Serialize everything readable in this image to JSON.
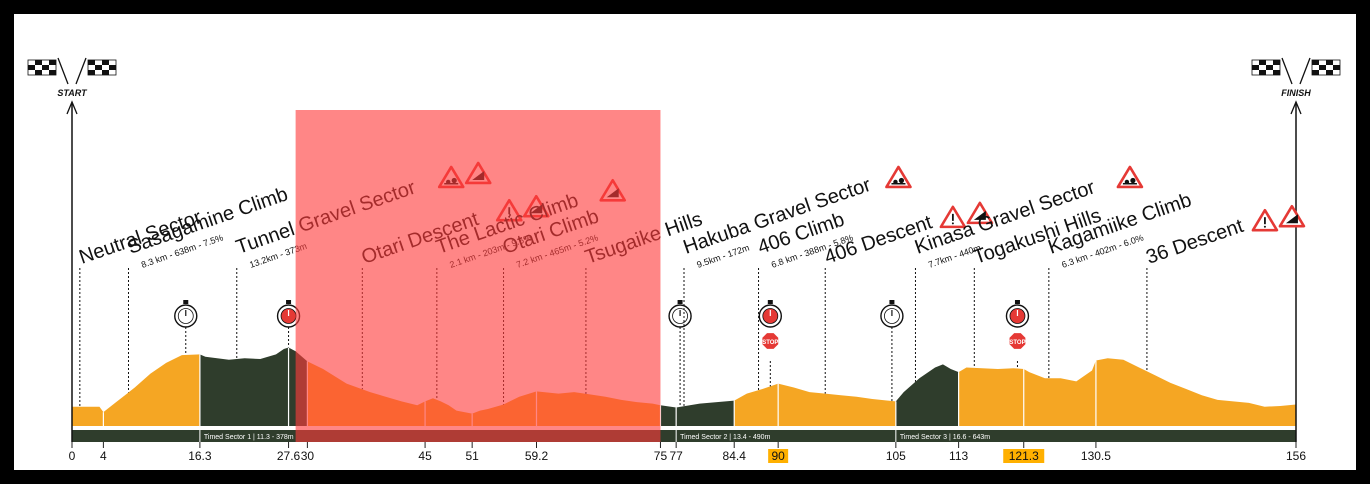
{
  "chart_data": {
    "type": "area",
    "title": "",
    "xlabel": "",
    "ylabel": "",
    "x_unit": "km",
    "xlim": [
      0,
      156
    ],
    "x_ticks": [
      {
        "v": 0,
        "label": "0"
      },
      {
        "v": 4,
        "label": "4"
      },
      {
        "v": 16.3,
        "label": "16.3"
      },
      {
        "v": 27.6,
        "label": "27.6"
      },
      {
        "v": 30,
        "label": "30"
      },
      {
        "v": 45,
        "label": "45"
      },
      {
        "v": 51,
        "label": "51"
      },
      {
        "v": 59.2,
        "label": "59.2"
      },
      {
        "v": 75,
        "label": "75"
      },
      {
        "v": 77,
        "label": "77"
      },
      {
        "v": 84.4,
        "label": "84.4"
      },
      {
        "v": 90,
        "label": "90",
        "highlight": true
      },
      {
        "v": 105,
        "label": "105"
      },
      {
        "v": 113,
        "label": "113"
      },
      {
        "v": 121.3,
        "label": "121.3",
        "highlight": true
      },
      {
        "v": 130.5,
        "label": "130.5"
      },
      {
        "v": 156,
        "label": "156"
      }
    ],
    "profile": {
      "x": [
        0,
        3.5,
        4,
        5.5,
        8,
        10,
        12,
        14,
        16.3,
        17,
        20,
        22,
        24,
        26,
        27,
        27.6,
        28.5,
        30,
        32,
        35,
        38,
        42,
        44,
        45,
        46,
        47,
        48,
        49,
        50,
        51,
        52,
        53,
        55,
        57,
        59.2,
        62,
        64,
        66,
        68,
        70,
        72,
        74,
        75,
        77,
        80,
        84.4,
        86,
        88,
        90,
        92,
        94,
        96,
        98,
        100,
        102,
        104,
        105,
        106,
        108,
        110,
        111,
        112,
        113,
        114,
        116,
        118,
        120,
        121.3,
        122,
        124,
        126,
        128,
        130,
        130.5,
        132,
        134,
        136,
        138,
        140,
        142,
        144,
        146,
        148,
        150,
        152,
        154,
        156
      ],
      "y": [
        0.25,
        0.25,
        0.18,
        0.3,
        0.5,
        0.68,
        0.82,
        0.92,
        0.93,
        0.9,
        0.86,
        0.88,
        0.87,
        0.93,
        1.0,
        1.02,
        0.97,
        0.84,
        0.74,
        0.55,
        0.44,
        0.32,
        0.27,
        0.32,
        0.36,
        0.32,
        0.27,
        0.2,
        0.18,
        0.16,
        0.2,
        0.22,
        0.28,
        0.38,
        0.45,
        0.42,
        0.44,
        0.41,
        0.38,
        0.34,
        0.31,
        0.29,
        0.27,
        0.24,
        0.29,
        0.33,
        0.42,
        0.48,
        0.55,
        0.5,
        0.44,
        0.42,
        0.4,
        0.38,
        0.35,
        0.33,
        0.32,
        0.44,
        0.62,
        0.76,
        0.8,
        0.74,
        0.7,
        0.76,
        0.75,
        0.74,
        0.75,
        0.74,
        0.7,
        0.62,
        0.62,
        0.58,
        0.72,
        0.85,
        0.88,
        0.86,
        0.76,
        0.66,
        0.56,
        0.48,
        0.4,
        0.34,
        0.32,
        0.3,
        0.25,
        0.26,
        0.28
      ]
    },
    "segments": [
      {
        "from": 0,
        "to": 16.3,
        "color": "#f5a623"
      },
      {
        "from": 16.3,
        "to": 27.6,
        "color": "#2f3d2c"
      },
      {
        "from": 27.6,
        "to": 30,
        "color": "#2f3d2c"
      },
      {
        "from": 30,
        "to": 75,
        "color": "#f5a623"
      },
      {
        "from": 75,
        "to": 84.4,
        "color": "#2f3d2c"
      },
      {
        "from": 84.4,
        "to": 105,
        "color": "#f5a623"
      },
      {
        "from": 105,
        "to": 113,
        "color": "#2f3d2c"
      },
      {
        "from": 113,
        "to": 156,
        "color": "#f5a623"
      }
    ],
    "timed_sectors": [
      {
        "from": 16.3,
        "to": 30,
        "label": "Timed Sector 1 | 11.3 - 378m"
      },
      {
        "from": 77,
        "to": 105,
        "label": "Timed Sector 2 | 13.4 - 490m"
      },
      {
        "from": 105,
        "to": 140,
        "label": "Timed Sector 3 | 16.6 - 643m"
      }
    ],
    "highlight_region": {
      "from": 28.5,
      "to": 75,
      "color": "rgba(255,60,60,0.62)"
    },
    "start_label": "START",
    "finish_label": "FINISH",
    "annotations": [
      {
        "km": 1,
        "name": "Neutral Sector",
        "sub": "",
        "dy": 0,
        "icons": []
      },
      {
        "km": 7.2,
        "name": "Sasagamine Climb",
        "sub": "8.3 km - 638m - 7.5%",
        "dy": 20,
        "icons": []
      },
      {
        "km": 21,
        "name": "Tunnel Gravel Sector",
        "sub": "13.2km - 373m",
        "dy": 20,
        "icons": [
          "gravel",
          "climb"
        ]
      },
      {
        "km": 37,
        "name": "Otari Descent",
        "sub": "",
        "dy": 20,
        "icons": [
          "descent",
          "climb"
        ]
      },
      {
        "km": 46.5,
        "name": "The Lactic Climb",
        "sub": "2.1 km - 203m - 9.5%",
        "dy": 20,
        "icons": [
          "climb"
        ]
      },
      {
        "km": 55,
        "name": "Otari Climb",
        "sub": "7.2 km - 465m - 5.2%",
        "dy": 20,
        "icons": []
      },
      {
        "km": 65.5,
        "name": "Tsugaike Hills",
        "sub": "",
        "dy": 20,
        "icons": []
      },
      {
        "km": 78,
        "name": "Hakuba Gravel Sector",
        "sub": "9.5km - 172m",
        "dy": 20,
        "icons": [
          "gravel"
        ]
      },
      {
        "km": 87.5,
        "name": "406 Climb",
        "sub": "6.8 km - 388m - 5.8%",
        "dy": 20,
        "icons": []
      },
      {
        "km": 96,
        "name": "406 Descent",
        "sub": "",
        "dy": 20,
        "icons": [
          "descent",
          "climb"
        ]
      },
      {
        "km": 107.5,
        "name": "Kinasa Gravel Sector",
        "sub": "7.7km - 440m",
        "dy": 20,
        "icons": [
          "gravel"
        ]
      },
      {
        "km": 115,
        "name": "Togakushi Hills",
        "sub": "",
        "dy": 20,
        "icons": []
      },
      {
        "km": 124.5,
        "name": "Kagamiike Climb",
        "sub": "6.3 km - 402m - 6.0%",
        "dy": 20,
        "icons": []
      },
      {
        "km": 137,
        "name": "36 Descent",
        "sub": "",
        "dy": 20,
        "icons": [
          "descent",
          "climb"
        ]
      }
    ],
    "timers": [
      {
        "km": 14.5,
        "type": "timer"
      },
      {
        "km": 27.6,
        "type": "timer-red"
      },
      {
        "km": 77.5,
        "type": "timer"
      },
      {
        "km": 89,
        "type": "timer-red",
        "stop": "STOP"
      },
      {
        "km": 104.5,
        "type": "timer"
      },
      {
        "km": 120.5,
        "type": "timer-red",
        "stop": "STOP"
      }
    ],
    "colors": {
      "gravel": "#f5a623",
      "timed": "#2f3d2c",
      "highlight": "#ff3c3c",
      "accent": "#ffb000"
    }
  }
}
